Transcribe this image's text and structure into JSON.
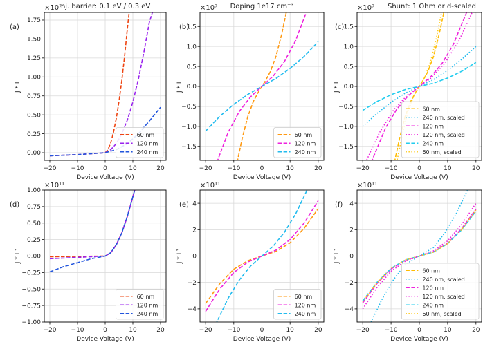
{
  "chart_data": [
    {
      "type": "line",
      "panel_label": "(a)",
      "title": "Inj. barrier: 0.1 eV / 0.3 eV",
      "multiplier": "×10⁷",
      "xlabel": "Device Voltage (V)",
      "ylabel": "J * L",
      "xlim": [
        -22,
        22
      ],
      "ylim": [
        -0.1,
        1.85
      ],
      "xticks": [
        -20,
        -10,
        0,
        10,
        20
      ],
      "yticks": [
        0.0,
        0.25,
        0.5,
        0.75,
        1.0,
        1.25,
        1.5,
        1.75
      ],
      "ytick_labels": [
        "0.00",
        "0.25",
        "0.50",
        "0.75",
        "1.00",
        "1.25",
        "1.50",
        "1.75"
      ],
      "grid": true,
      "legend_position": "lower-right",
      "series": [
        {
          "name": "60 nm",
          "color": "#ee4411",
          "dash": "dashed",
          "x": [
            -20,
            -10,
            0,
            1,
            2,
            3,
            4,
            5,
            6,
            7,
            8,
            8.8
          ],
          "y": [
            -0.04,
            -0.025,
            0.0,
            0.04,
            0.13,
            0.27,
            0.45,
            0.68,
            0.95,
            1.27,
            1.63,
            1.9
          ]
        },
        {
          "name": "120 nm",
          "color": "#9922ee",
          "dash": "dashed",
          "x": [
            -20,
            -10,
            0,
            2,
            4,
            6,
            8,
            10,
            12,
            14,
            16,
            17.5
          ],
          "y": [
            -0.04,
            -0.025,
            0.0,
            0.04,
            0.12,
            0.25,
            0.43,
            0.67,
            0.97,
            1.33,
            1.73,
            1.9
          ]
        },
        {
          "name": "240 nm",
          "color": "#2255dd",
          "dash": "dashed",
          "x": [
            -20,
            -10,
            0,
            4,
            8,
            12,
            16,
            20
          ],
          "y": [
            -0.04,
            -0.025,
            0.0,
            0.04,
            0.12,
            0.25,
            0.42,
            0.6
          ]
        }
      ]
    },
    {
      "type": "line",
      "panel_label": "(b)",
      "title": "Doping 1e17 cm⁻³",
      "multiplier": "×10⁷",
      "xlabel": "Device Voltage (V)",
      "ylabel": "J * L",
      "xlim": [
        -22,
        22
      ],
      "ylim": [
        -1.85,
        1.85
      ],
      "xticks": [
        -20,
        -10,
        0,
        10,
        20
      ],
      "yticks": [
        -1.5,
        -1.0,
        -0.5,
        0.0,
        0.5,
        1.0,
        1.5
      ],
      "ytick_labels": [
        "−1.5",
        "−1.0",
        "−0.5",
        "0.0",
        "0.5",
        "1.0",
        "1.5"
      ],
      "grid": true,
      "legend_position": "lower-right",
      "series": [
        {
          "name": "60 nm",
          "color": "#ff9911",
          "dash": "dashed",
          "x": [
            -8.8,
            -7,
            -5,
            -3,
            -1,
            0,
            1,
            3,
            5,
            7,
            8.8
          ],
          "y": [
            -1.9,
            -1.3,
            -0.75,
            -0.37,
            -0.11,
            0.0,
            0.11,
            0.37,
            0.75,
            1.3,
            1.9
          ]
        },
        {
          "name": "120 nm",
          "color": "#ee22dd",
          "dash": "dashed",
          "x": [
            -16,
            -12,
            -8,
            -4,
            0,
            4,
            8,
            12,
            16
          ],
          "y": [
            -1.9,
            -1.15,
            -0.62,
            -0.26,
            0.0,
            0.26,
            0.62,
            1.15,
            1.9
          ]
        },
        {
          "name": "240 nm",
          "color": "#22bbee",
          "dash": "dashed",
          "x": [
            -20,
            -15,
            -10,
            -5,
            0,
            5,
            10,
            15,
            20
          ],
          "y": [
            -1.12,
            -0.75,
            -0.45,
            -0.2,
            0.0,
            0.2,
            0.45,
            0.75,
            1.12
          ]
        }
      ]
    },
    {
      "type": "line",
      "panel_label": "(c)",
      "title": "Shunt: 1 Ohm or d-scaled",
      "multiplier": "×10⁷",
      "xlabel": "Device Voltage (V)",
      "ylabel": "J * L",
      "xlim": [
        -22,
        22
      ],
      "ylim": [
        -1.85,
        1.85
      ],
      "xticks": [
        -20,
        -10,
        0,
        10,
        20
      ],
      "yticks": [
        -1.5,
        -1.0,
        -0.5,
        0.0,
        0.5,
        1.0,
        1.5
      ],
      "ytick_labels": [
        "−1.5",
        "−1.0",
        "−0.5",
        "0.0",
        "0.5",
        "1.0",
        "1.5"
      ],
      "grid": true,
      "legend_position": "lower-right",
      "series": [
        {
          "name": "60 nm",
          "color": "#ffbb00",
          "dash": "dashed",
          "x": [
            -8.8,
            -7,
            -5,
            -3,
            -1,
            0,
            1,
            3,
            5,
            7,
            8.8
          ],
          "y": [
            -1.9,
            -1.3,
            -0.75,
            -0.37,
            -0.11,
            0.0,
            0.11,
            0.37,
            0.75,
            1.3,
            1.9
          ]
        },
        {
          "name": "240 nm, scaled",
          "color": "#22bbee",
          "dash": "dotted",
          "x": [
            -20,
            -15,
            -10,
            -5,
            0,
            5,
            10,
            15,
            20
          ],
          "y": [
            -1.0,
            -0.68,
            -0.4,
            -0.17,
            0.0,
            0.17,
            0.4,
            0.68,
            1.0
          ]
        },
        {
          "name": "120 nm",
          "color": "#ee22dd",
          "dash": "dashed",
          "x": [
            -17,
            -12,
            -8,
            -4,
            0,
            4,
            8,
            12,
            17
          ],
          "y": [
            -1.9,
            -1.05,
            -0.57,
            -0.24,
            0.0,
            0.24,
            0.57,
            1.05,
            1.9
          ]
        },
        {
          "name": "120 nm, scaled",
          "color": "#ee22dd",
          "dash": "dotted",
          "x": [
            -19,
            -14,
            -9,
            -4,
            0,
            4,
            9,
            14,
            19
          ],
          "y": [
            -1.9,
            -1.15,
            -0.58,
            -0.2,
            0.0,
            0.2,
            0.58,
            1.15,
            1.9
          ]
        },
        {
          "name": "240 nm",
          "color": "#22ccee",
          "dash": "dashed",
          "x": [
            -20,
            -15,
            -10,
            -5,
            0,
            5,
            10,
            15,
            20
          ],
          "y": [
            -0.6,
            -0.38,
            -0.21,
            -0.08,
            0.0,
            0.08,
            0.21,
            0.38,
            0.6
          ]
        },
        {
          "name": "60 nm, scaled",
          "color": "#ffcc22",
          "dash": "dotted",
          "x": [
            -8,
            -6,
            -4,
            -2,
            0,
            2,
            4,
            6,
            8
          ],
          "y": [
            -1.9,
            -1.2,
            -0.63,
            -0.24,
            0.0,
            0.24,
            0.63,
            1.2,
            1.9
          ]
        }
      ]
    },
    {
      "type": "line",
      "panel_label": "(d)",
      "title": "",
      "multiplier": "×10¹¹",
      "xlabel": "Device Voltage (V)",
      "ylabel": "J * L³",
      "xlim": [
        -22,
        22
      ],
      "ylim": [
        -1.0,
        1.0
      ],
      "xticks": [
        -20,
        -10,
        0,
        10,
        20
      ],
      "yticks": [
        -1.0,
        -0.75,
        -0.5,
        -0.25,
        0.0,
        0.25,
        0.5,
        0.75,
        1.0
      ],
      "ytick_labels": [
        "−1.00",
        "−0.75",
        "−0.50",
        "−0.25",
        "0.00",
        "0.25",
        "0.50",
        "0.75",
        "1.00"
      ],
      "grid": true,
      "legend_position": "lower-right",
      "series": [
        {
          "name": "60 nm",
          "color": "#ee4411",
          "dash": "dashed",
          "x": [
            -20,
            -10,
            0,
            2,
            4,
            6,
            8,
            10,
            11
          ],
          "y": [
            -0.01,
            -0.005,
            0.0,
            0.05,
            0.17,
            0.35,
            0.6,
            0.9,
            1.05
          ]
        },
        {
          "name": "120 nm",
          "color": "#9922ee",
          "dash": "dashed",
          "x": [
            -20,
            -10,
            0,
            2,
            4,
            6,
            8,
            10,
            11
          ],
          "y": [
            -0.04,
            -0.02,
            0.0,
            0.05,
            0.17,
            0.35,
            0.6,
            0.9,
            1.05
          ]
        },
        {
          "name": "240 nm",
          "color": "#2255dd",
          "dash": "dashed",
          "x": [
            -20,
            -15,
            -10,
            -5,
            0,
            2,
            4,
            6,
            8,
            10,
            11
          ],
          "y": [
            -0.24,
            -0.16,
            -0.1,
            -0.04,
            0.0,
            0.05,
            0.17,
            0.35,
            0.6,
            0.9,
            1.05
          ]
        }
      ]
    },
    {
      "type": "line",
      "panel_label": "(e)",
      "title": "",
      "multiplier": "×10¹¹",
      "xlabel": "Device Voltage (V)",
      "ylabel": "J * L³",
      "xlim": [
        -22,
        22
      ],
      "ylim": [
        -5,
        5
      ],
      "xticks": [
        -20,
        -10,
        0,
        10,
        20
      ],
      "yticks": [
        -4,
        -2,
        0,
        2,
        4
      ],
      "ytick_labels": [
        "−4",
        "−2",
        "0",
        "2",
        "4"
      ],
      "grid": true,
      "legend_position": "lower-right",
      "series": [
        {
          "name": "60 nm",
          "color": "#ff9911",
          "dash": "dashed",
          "x": [
            -20,
            -15,
            -10,
            -5,
            0,
            5,
            10,
            15,
            20
          ],
          "y": [
            -3.6,
            -2.1,
            -1.0,
            -0.35,
            0.0,
            0.35,
            1.0,
            2.1,
            3.6
          ]
        },
        {
          "name": "120 nm",
          "color": "#ee22dd",
          "dash": "dashed",
          "x": [
            -20,
            -15,
            -10,
            -5,
            0,
            5,
            10,
            15,
            20
          ],
          "y": [
            -4.2,
            -2.5,
            -1.25,
            -0.45,
            0.0,
            0.45,
            1.25,
            2.5,
            4.2
          ]
        },
        {
          "name": "240 nm",
          "color": "#22bbee",
          "dash": "dashed",
          "x": [
            -16.5,
            -12,
            -8,
            -4,
            0,
            4,
            8,
            12,
            16.5
          ],
          "y": [
            -5.2,
            -3.2,
            -1.8,
            -0.75,
            0.0,
            0.75,
            1.8,
            3.2,
            5.2
          ]
        }
      ]
    },
    {
      "type": "line",
      "panel_label": "(f)",
      "title": "",
      "multiplier": "×10¹¹",
      "xlabel": "Device Voltage (V)",
      "ylabel": "J * L³",
      "xlim": [
        -22,
        22
      ],
      "ylim": [
        -5,
        5
      ],
      "xticks": [
        -20,
        -10,
        0,
        10,
        20
      ],
      "yticks": [
        -4,
        -2,
        0,
        2,
        4
      ],
      "ytick_labels": [
        "−4",
        "−2",
        "0",
        "2",
        "4"
      ],
      "grid": true,
      "legend_position": "lower-right",
      "series": [
        {
          "name": "60 nm",
          "color": "#ffbb00",
          "dash": "dashed",
          "x": [
            -20,
            -15,
            -10,
            -5,
            0,
            5,
            10,
            15,
            20
          ],
          "y": [
            -3.5,
            -2.05,
            -0.95,
            -0.3,
            0.0,
            0.3,
            0.95,
            2.05,
            3.5
          ]
        },
        {
          "name": "240 nm, scaled",
          "color": "#22bbee",
          "dash": "dotted",
          "x": [
            -17.5,
            -13,
            -9,
            -5,
            0,
            5,
            9,
            13,
            17.5
          ],
          "y": [
            -5.2,
            -3.2,
            -1.75,
            -0.65,
            0.0,
            0.65,
            1.75,
            3.2,
            5.2
          ]
        },
        {
          "name": "120 nm",
          "color": "#ee22dd",
          "dash": "dashed",
          "x": [
            -20,
            -15,
            -10,
            -5,
            0,
            5,
            10,
            15,
            20
          ],
          "y": [
            -3.55,
            -2.1,
            -0.98,
            -0.32,
            0.0,
            0.32,
            0.98,
            2.1,
            3.55
          ]
        },
        {
          "name": "120 nm, scaled",
          "color": "#ee22dd",
          "dash": "dotted",
          "x": [
            -20,
            -15,
            -10,
            -5,
            0,
            5,
            10,
            15,
            20
          ],
          "y": [
            -4.0,
            -2.4,
            -1.15,
            -0.4,
            0.0,
            0.4,
            1.15,
            2.4,
            4.0
          ]
        },
        {
          "name": "240 nm",
          "color": "#22ccee",
          "dash": "dashed",
          "x": [
            -20,
            -15,
            -10,
            -5,
            0,
            5,
            10,
            15,
            20
          ],
          "y": [
            -3.4,
            -2.0,
            -0.93,
            -0.3,
            0.0,
            0.3,
            0.93,
            2.0,
            3.4
          ]
        },
        {
          "name": "60 nm, scaled",
          "color": "#ffcc22",
          "dash": "dotted",
          "x": [
            -20,
            -15,
            -10,
            -5,
            0,
            5,
            10,
            15,
            20
          ],
          "y": [
            -3.45,
            -2.03,
            -0.94,
            -0.3,
            0.0,
            0.3,
            0.94,
            2.03,
            3.45
          ]
        }
      ]
    }
  ]
}
